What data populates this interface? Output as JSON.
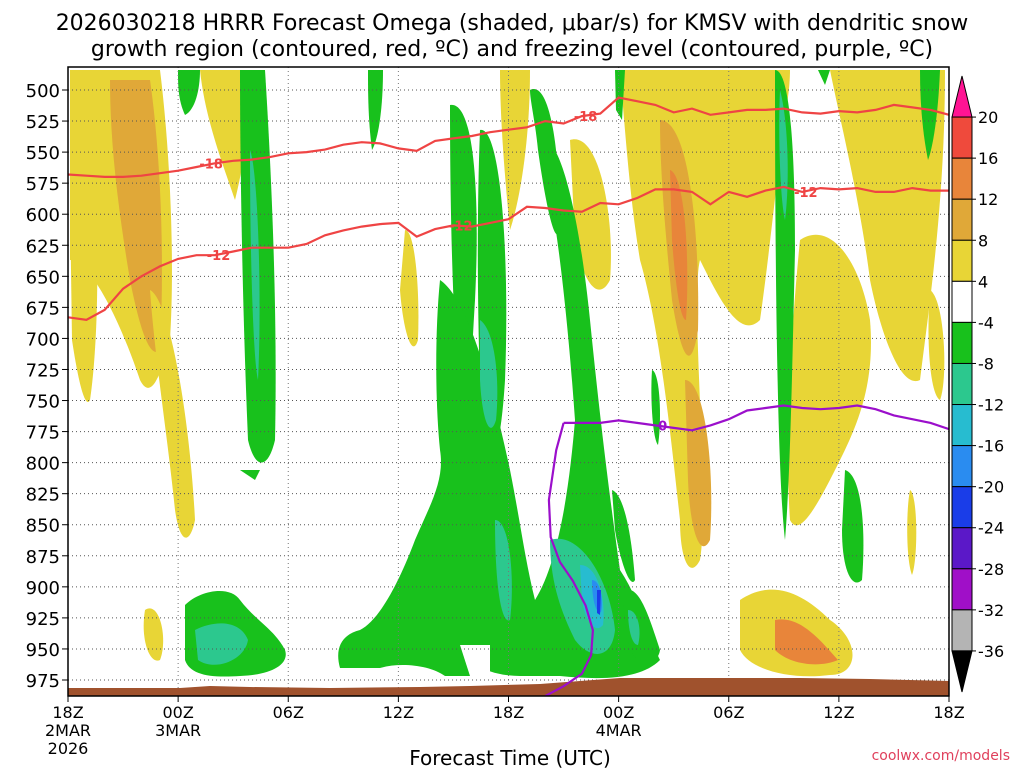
{
  "chart_data": {
    "type": "heatmap",
    "title_line1": "2026030218 HRRR Forecast Omega (shaded, μbar/s) for KMSV with dendritic snow",
    "title_line2": "growth region (contoured, red, ºC) and freezing level (contoured, purple, ºC)",
    "xlabel": "Forecast Time (UTC)",
    "credit": "coolwx.com/models",
    "x_range_hours": [
      0,
      48
    ],
    "x_ticks": [
      {
        "h": 0,
        "label": "18Z",
        "date": "2MAR",
        "year": "2026"
      },
      {
        "h": 6,
        "label": "00Z",
        "date": "3MAR",
        "year": ""
      },
      {
        "h": 12,
        "label": "06Z",
        "date": "",
        "year": ""
      },
      {
        "h": 18,
        "label": "12Z",
        "date": "",
        "year": ""
      },
      {
        "h": 24,
        "label": "18Z",
        "date": "",
        "year": ""
      },
      {
        "h": 30,
        "label": "00Z",
        "date": "4MAR",
        "year": ""
      },
      {
        "h": 36,
        "label": "06Z",
        "date": "",
        "year": ""
      },
      {
        "h": 42,
        "label": "12Z",
        "date": "",
        "year": ""
      },
      {
        "h": 48,
        "label": "18Z",
        "date": "",
        "year": ""
      }
    ],
    "y_range_mb": [
      990,
      487
    ],
    "y_ticks": [
      "500",
      "525",
      "550",
      "575",
      "600",
      "625",
      "650",
      "675",
      "700",
      "725",
      "750",
      "775",
      "800",
      "825",
      "850",
      "875",
      "900",
      "925",
      "950",
      "975"
    ],
    "colorbar": {
      "labels": [
        "20",
        "16",
        "12",
        "8",
        "4",
        "-4",
        "-8",
        "-12",
        "-16",
        "-20",
        "-24",
        "-28",
        "-32",
        "-36"
      ],
      "colors": [
        "#ff1493",
        "#ef4a3c",
        "#e8853a",
        "#e0a838",
        "#e8d536",
        "#ffffff",
        "#18c11c",
        "#2cc88e",
        "#27bcd0",
        "#2a8cf0",
        "#1a3de8",
        "#5b18c8",
        "#a00fc8",
        "#b4b4b4",
        "#000000"
      ]
    },
    "series": [
      {
        "name": "-18C isotherm",
        "color": "#ef4444",
        "label": "-18",
        "h": [
          0,
          1,
          2,
          3,
          4,
          5,
          6,
          7,
          8,
          9,
          10,
          11,
          12,
          13,
          14,
          15,
          16,
          17,
          18,
          19,
          20,
          21,
          22,
          23,
          24,
          25,
          26,
          27,
          28,
          29,
          30,
          31,
          32,
          33,
          34,
          35,
          36,
          37,
          38,
          39,
          40,
          41,
          42,
          43,
          44,
          45,
          46,
          47,
          48
        ],
        "p": [
          568,
          569,
          570,
          570,
          569,
          567,
          565,
          562,
          559,
          557,
          556,
          554,
          551,
          550,
          548,
          544,
          542,
          543,
          547,
          549,
          541,
          539,
          537,
          534,
          532,
          530,
          525,
          527,
          521,
          519,
          506,
          509,
          512,
          518,
          515,
          520,
          518,
          516,
          516,
          515,
          518,
          519,
          517,
          518,
          516,
          512,
          514,
          516,
          520
        ]
      },
      {
        "name": "-12C isotherm",
        "color": "#ef4444",
        "label": "-12",
        "h": [
          0,
          1,
          2,
          3,
          4,
          5,
          6,
          7,
          8,
          9,
          10,
          11,
          12,
          13,
          14,
          15,
          16,
          17,
          18,
          19,
          20,
          21,
          22,
          23,
          24,
          25,
          26,
          27,
          28,
          29,
          30,
          31,
          32,
          33,
          34,
          35,
          36,
          37,
          38,
          39,
          40,
          41,
          42,
          43,
          44,
          45,
          46,
          47,
          48
        ],
        "p": [
          683,
          685,
          677,
          660,
          650,
          642,
          636,
          633,
          633,
          630,
          627,
          627,
          627,
          624,
          617,
          613,
          610,
          608,
          607,
          618,
          612,
          609,
          610,
          607,
          604,
          594,
          595,
          597,
          598,
          591,
          592,
          587,
          580,
          580,
          582,
          592,
          582,
          586,
          581,
          578,
          582,
          579,
          580,
          579,
          582,
          582,
          579,
          581,
          581
        ]
      },
      {
        "name": "0C freezing level",
        "color": "#9b0fcb",
        "label": "0",
        "h": [
          27,
          28,
          29,
          30,
          31,
          32,
          33,
          34,
          35,
          36,
          37,
          38,
          39,
          40,
          41,
          42,
          43,
          44,
          45,
          46,
          47,
          48
        ],
        "p": [
          768,
          768,
          768,
          766,
          768,
          770,
          772,
          774,
          770,
          765,
          758,
          756,
          754,
          756,
          757,
          756,
          754,
          757,
          762,
          765,
          768,
          773
        ]
      }
    ],
    "freezing_level_lower_branch": {
      "h": [
        27,
        26.6,
        26.2,
        26.3,
        26.8,
        27.5,
        28.2,
        28.6,
        28.5,
        28.0,
        27.0,
        26.0
      ],
      "p": [
        768,
        790,
        830,
        860,
        880,
        895,
        915,
        935,
        955,
        970,
        980,
        988
      ]
    },
    "legend_position": "right (color bar)",
    "grid": true
  }
}
